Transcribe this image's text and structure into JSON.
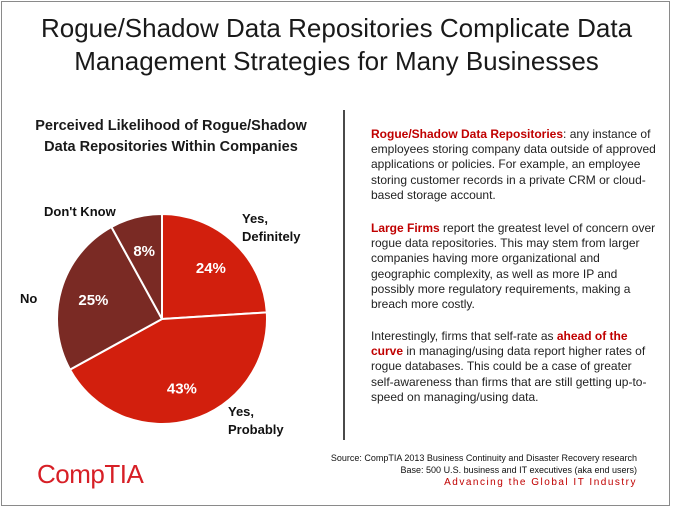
{
  "header": {
    "title_line1": "Rogue/Shadow Data Repositories Complicate Data",
    "title_line2": "Management Strategies for Many Businesses"
  },
  "chart_data": {
    "type": "pie",
    "title_line1": "Perceived Likelihood of Rogue/Shadow",
    "title_line2": "Data Repositories Within Companies",
    "slices": [
      {
        "category_lines": [
          "Yes,",
          "Definitely"
        ],
        "value": 24,
        "label": "24%",
        "color": "#d21f0d"
      },
      {
        "category_lines": [
          "Yes,",
          "Probably"
        ],
        "value": 43,
        "label": "43%",
        "color": "#d21f0d"
      },
      {
        "category_lines": [
          "No"
        ],
        "value": 25,
        "label": "25%",
        "color": "#7a2a24"
      },
      {
        "category_lines": [
          "Don't Know"
        ],
        "value": 8,
        "label": "8%",
        "color": "#7a2a24"
      }
    ],
    "start_angle_deg": 0,
    "direction": "clockwise",
    "legend": "none",
    "slice_edge_color": "#ffffff"
  },
  "panel": {
    "p1": {
      "highlight": "Rogue/Shadow Data Repositories",
      "rest": ": any instance of employees storing company data outside of approved applications or policies. For example, an employee storing customer records in a private CRM or cloud-based storage account."
    },
    "p2": {
      "highlight": "Large Firms",
      "rest": " report the greatest level of concern over rogue data repositories. This may stem from larger companies having more organizational and geographic complexity, as well as more IP and possibly more regulatory requirements, making a breach more costly."
    },
    "p3": {
      "before": "Interestingly, firms that self-rate as ",
      "highlight": "ahead of the curve",
      "after": " in managing/using data report higher rates of rogue databases. This could be a case of greater self-awareness than firms that are still getting up-to-speed on managing/using data."
    }
  },
  "footer": {
    "source_line1": "Source: CompTIA 2013 Business Continuity and Disaster Recovery research",
    "source_line2": "Base: 500 U.S. business and IT executives (aka end users)",
    "tagline": "Advancing the Global IT Industry",
    "logo_text": "CompTIA"
  },
  "colors": {
    "accent": "#c00000",
    "pie_light": "#d21f0d",
    "pie_dark": "#7a2a24"
  }
}
